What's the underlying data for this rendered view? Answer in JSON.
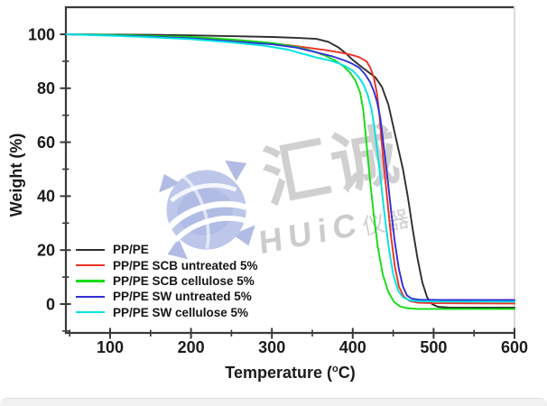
{
  "figure": {
    "background": "#ffffff",
    "footer_strip_color": "#f2f2f2"
  },
  "watermark": {
    "brand_cn": "汇诚",
    "brand_latin": "HUiC",
    "brand_suffix": "仪器",
    "logo_color": "#b5c1e8",
    "text_color": "#cbcbcb"
  },
  "chart_data": {
    "type": "line",
    "title": "",
    "xlabel": "Temperature (°C)",
    "xlabel_parts": {
      "pre": "Temperature (",
      "sup": "o",
      "post": "C)"
    },
    "ylabel": "Weight (%)",
    "xlim": [
      45,
      600
    ],
    "ylim": [
      -10,
      110
    ],
    "x_ticks": [
      100,
      200,
      300,
      400,
      500,
      600
    ],
    "x_minor_ticks": [
      50,
      150,
      250,
      350,
      450,
      550
    ],
    "y_ticks": [
      0,
      20,
      40,
      60,
      80,
      100
    ],
    "y_minor_ticks": [
      -10,
      10,
      30,
      50,
      70,
      90
    ],
    "grid": false,
    "legend_position": "lower-left",
    "axis_color": "#3a3a3a",
    "series": [
      {
        "name": "PP/PE",
        "color": "#2e2e2e",
        "points": [
          [
            46,
            100
          ],
          [
            100,
            99.9
          ],
          [
            150,
            99.8
          ],
          [
            200,
            99.6
          ],
          [
            250,
            99.3
          ],
          [
            300,
            99.0
          ],
          [
            330,
            98.7
          ],
          [
            355,
            98.3
          ],
          [
            370,
            97.2
          ],
          [
            382,
            95.2
          ],
          [
            392,
            92.8
          ],
          [
            400,
            90.5
          ],
          [
            408,
            88.6
          ],
          [
            418,
            86.3
          ],
          [
            428,
            84.0
          ],
          [
            436,
            80.5
          ],
          [
            444,
            74.0
          ],
          [
            450,
            66.0
          ],
          [
            456,
            58.0
          ],
          [
            462,
            50.0
          ],
          [
            468,
            40.0
          ],
          [
            474,
            28.0
          ],
          [
            480,
            17.0
          ],
          [
            486,
            8.0
          ],
          [
            492,
            2.5
          ],
          [
            498,
            0.0
          ],
          [
            505,
            -1.0
          ],
          [
            520,
            -1.3
          ],
          [
            600,
            -1.3
          ]
        ]
      },
      {
        "name": "PP/PE SCB untreated 5%",
        "color": "#ee3124",
        "points": [
          [
            46,
            100
          ],
          [
            100,
            99.7
          ],
          [
            150,
            99.3
          ],
          [
            200,
            98.8
          ],
          [
            250,
            98.0
          ],
          [
            290,
            97.0
          ],
          [
            320,
            96.0
          ],
          [
            345,
            95.0
          ],
          [
            365,
            94.2
          ],
          [
            385,
            93.2
          ],
          [
            398,
            92.4
          ],
          [
            408,
            91.5
          ],
          [
            417,
            90.0
          ],
          [
            422,
            87.5
          ],
          [
            426,
            84.0
          ],
          [
            430,
            78.0
          ],
          [
            433,
            70.0
          ],
          [
            436,
            59.0
          ],
          [
            439,
            50.0
          ],
          [
            443,
            38.0
          ],
          [
            447,
            26.0
          ],
          [
            452,
            14.0
          ],
          [
            457,
            6.5
          ],
          [
            463,
            2.8
          ],
          [
            470,
            1.2
          ],
          [
            480,
            0.5
          ],
          [
            500,
            0.3
          ],
          [
            600,
            0.2
          ]
        ]
      },
      {
        "name": "PP/PE SCB cellulose 5%",
        "color": "#12dd12",
        "points": [
          [
            46,
            100
          ],
          [
            100,
            99.8
          ],
          [
            150,
            99.4
          ],
          [
            200,
            99.0
          ],
          [
            250,
            98.1
          ],
          [
            300,
            96.8
          ],
          [
            330,
            95.4
          ],
          [
            350,
            93.8
          ],
          [
            365,
            92.2
          ],
          [
            378,
            90.3
          ],
          [
            388,
            88.3
          ],
          [
            396,
            86.0
          ],
          [
            403,
            83.0
          ],
          [
            409,
            78.5
          ],
          [
            413,
            72.0
          ],
          [
            416,
            63.0
          ],
          [
            419,
            53.0
          ],
          [
            422,
            44.0
          ],
          [
            426,
            33.0
          ],
          [
            431,
            21.0
          ],
          [
            437,
            11.0
          ],
          [
            444,
            4.5
          ],
          [
            451,
            0.8
          ],
          [
            458,
            -0.8
          ],
          [
            466,
            -1.5
          ],
          [
            480,
            -1.8
          ],
          [
            600,
            -1.8
          ]
        ]
      },
      {
        "name": "PP/PE SW untreated 5%",
        "color": "#3030d8",
        "points": [
          [
            46,
            100
          ],
          [
            100,
            99.6
          ],
          [
            150,
            99.1
          ],
          [
            200,
            98.5
          ],
          [
            250,
            97.4
          ],
          [
            300,
            96.3
          ],
          [
            330,
            95.1
          ],
          [
            355,
            93.3
          ],
          [
            375,
            91.8
          ],
          [
            390,
            90.3
          ],
          [
            400,
            89.0
          ],
          [
            408,
            87.6
          ],
          [
            415,
            85.3
          ],
          [
            421,
            82.5
          ],
          [
            426,
            79.0
          ],
          [
            430,
            75.0
          ],
          [
            434,
            69.0
          ],
          [
            438,
            59.5
          ],
          [
            441,
            52.0
          ],
          [
            444,
            44.0
          ],
          [
            448,
            33.0
          ],
          [
            452,
            23.0
          ],
          [
            457,
            13.0
          ],
          [
            462,
            6.5
          ],
          [
            467,
            3.2
          ],
          [
            473,
            2.0
          ],
          [
            482,
            1.6
          ],
          [
            510,
            1.5
          ],
          [
            600,
            1.5
          ]
        ]
      },
      {
        "name": "PP/PE SW cellulose 5%",
        "color": "#00e2e2",
        "points": [
          [
            46,
            100
          ],
          [
            100,
            99.5
          ],
          [
            150,
            98.9
          ],
          [
            200,
            98.2
          ],
          [
            250,
            97.0
          ],
          [
            290,
            95.8
          ],
          [
            320,
            94.3
          ],
          [
            340,
            92.6
          ],
          [
            355,
            91.4
          ],
          [
            370,
            90.4
          ],
          [
            382,
            89.3
          ],
          [
            392,
            88.0
          ],
          [
            400,
            86.5
          ],
          [
            407,
            84.3
          ],
          [
            413,
            81.5
          ],
          [
            418,
            78.0
          ],
          [
            423,
            72.5
          ],
          [
            427,
            65.0
          ],
          [
            430,
            57.5
          ],
          [
            433,
            50.0
          ],
          [
            436,
            42.0
          ],
          [
            440,
            31.5
          ],
          [
            445,
            20.0
          ],
          [
            450,
            11.0
          ],
          [
            456,
            5.0
          ],
          [
            462,
            2.5
          ],
          [
            470,
            1.4
          ],
          [
            482,
            1.0
          ],
          [
            520,
            0.9
          ],
          [
            600,
            0.9
          ]
        ]
      }
    ]
  }
}
